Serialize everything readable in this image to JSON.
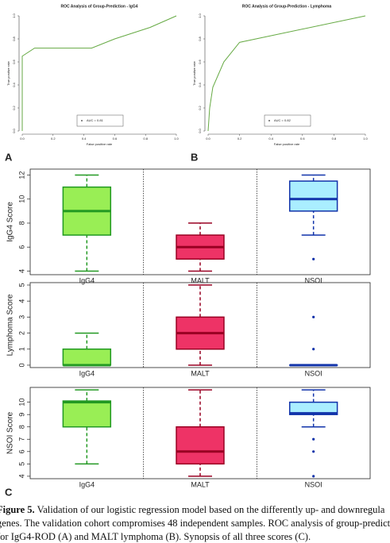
{
  "chart_data": [
    {
      "type": "line",
      "title": "ROC Analysis of Group-Prediction - IgG4",
      "xlabel": "False positive rate",
      "ylabel": "True positive rate",
      "xlim": [
        0,
        1
      ],
      "ylim": [
        0,
        1
      ],
      "xticks": [
        {
          "value": 0,
          "label": "0.0"
        },
        0.2,
        0.4,
        0.6,
        0.8,
        {
          "value": 1,
          "label": "1.0"
        }
      ],
      "yticks": [
        {
          "value": 0,
          "label": "0.0"
        },
        0.2,
        0.4,
        0.6,
        0.8,
        {
          "value": 1,
          "label": "1.0"
        }
      ],
      "series": [
        {
          "name": "AUC = 0.81",
          "color": "#66aa44",
          "x": [
            0,
            0,
            0.08,
            0.45,
            0.6,
            0.83,
            1
          ],
          "values": [
            0,
            0.65,
            0.72,
            0.72,
            0.8,
            0.9,
            1
          ]
        }
      ]
    },
    {
      "type": "line",
      "title": "ROC Analysis of Group-Prediction - Lymphoma",
      "xlabel": "False positive rate",
      "ylabel": "True positive rate",
      "xlim": [
        0,
        1
      ],
      "ylim": [
        0,
        1
      ],
      "xticks": [
        {
          "value": 0,
          "label": "0.0"
        },
        0.2,
        0.4,
        0.6,
        0.8,
        {
          "value": 1,
          "label": "1.0"
        }
      ],
      "yticks": [
        {
          "value": 0,
          "label": "0.0"
        },
        0.2,
        0.4,
        0.6,
        0.8,
        {
          "value": 1,
          "label": "1.0"
        }
      ],
      "series": [
        {
          "name": "AUC = 0.82",
          "color": "#66aa44",
          "x": [
            0,
            0.01,
            0.03,
            0.1,
            0.2,
            1
          ],
          "values": [
            0,
            0.2,
            0.38,
            0.6,
            0.77,
            1
          ]
        }
      ]
    },
    {
      "type": "box",
      "ylabel": "IgG4 Score",
      "categories": [
        "IgG4",
        "MALT",
        "NSOI"
      ],
      "ylim": [
        3.7,
        12.5
      ],
      "yticks": [
        4,
        6,
        8,
        10,
        12
      ],
      "boxes": [
        {
          "min": 4,
          "q1": 7,
          "median": 9,
          "q3": 11,
          "max": 12,
          "outliers": [],
          "fill": "#99ee55",
          "stroke": "#229922"
        },
        {
          "min": 4,
          "q1": 5,
          "median": 6,
          "q3": 7,
          "max": 8,
          "outliers": [],
          "fill": "#ee3366",
          "stroke": "#990022"
        },
        {
          "min": 7,
          "q1": 9,
          "median": 10,
          "q3": 11.5,
          "max": 12,
          "outliers": [
            5
          ],
          "fill": "#aaeeff",
          "stroke": "#1133aa"
        }
      ]
    },
    {
      "type": "box",
      "ylabel": "Lymphoma Score",
      "categories": [
        "IgG4",
        "MALT",
        "NSOI"
      ],
      "ylim": [
        -0.15,
        5.15
      ],
      "yticks": [
        0,
        1,
        2,
        3,
        4,
        5
      ],
      "boxes": [
        {
          "min": 0,
          "q1": 0,
          "median": 0,
          "q3": 1,
          "max": 2,
          "outliers": [],
          "fill": "#99ee55",
          "stroke": "#229922"
        },
        {
          "min": 0,
          "q1": 1,
          "median": 2,
          "q3": 3,
          "max": 5,
          "outliers": [],
          "fill": "#ee3366",
          "stroke": "#990022"
        },
        {
          "min": 0,
          "q1": 0,
          "median": 0,
          "q3": 0,
          "max": 0,
          "outliers": [
            1,
            3
          ],
          "fill": "#aaeeff",
          "stroke": "#1133aa"
        }
      ]
    },
    {
      "type": "box",
      "ylabel": "NSOI Score",
      "categories": [
        "IgG4",
        "MALT",
        "NSOI"
      ],
      "ylim": [
        3.8,
        11.2
      ],
      "yticks": [
        4,
        5,
        6,
        7,
        8,
        9,
        10
      ],
      "boxes": [
        {
          "min": 5,
          "q1": 8,
          "median": 10,
          "q3": 10.1,
          "max": 11,
          "outliers": [],
          "fill": "#99ee55",
          "stroke": "#229922"
        },
        {
          "min": 4,
          "q1": 5,
          "median": 6,
          "q3": 8,
          "max": 11,
          "outliers": [],
          "fill": "#ee3366",
          "stroke": "#990022"
        },
        {
          "min": 8,
          "q1": 9,
          "median": 9.1,
          "q3": 10,
          "max": 11,
          "outliers": [
            7,
            6,
            4
          ],
          "fill": "#aaeeff",
          "stroke": "#1133aa"
        }
      ]
    }
  ],
  "panel_labels": [
    "A",
    "B",
    "C"
  ],
  "caption": {
    "lead": "Figure 5.",
    "lines": [
      " Validation of our logistic regression model based on the differently up- and downregula",
      "genes. The validation cohort compromises 48 independent samples. ROC analysis of group-predict",
      "for IgG4-ROD (A) and MALT lymphoma (B). Synopsis of all three scores (C)."
    ]
  }
}
